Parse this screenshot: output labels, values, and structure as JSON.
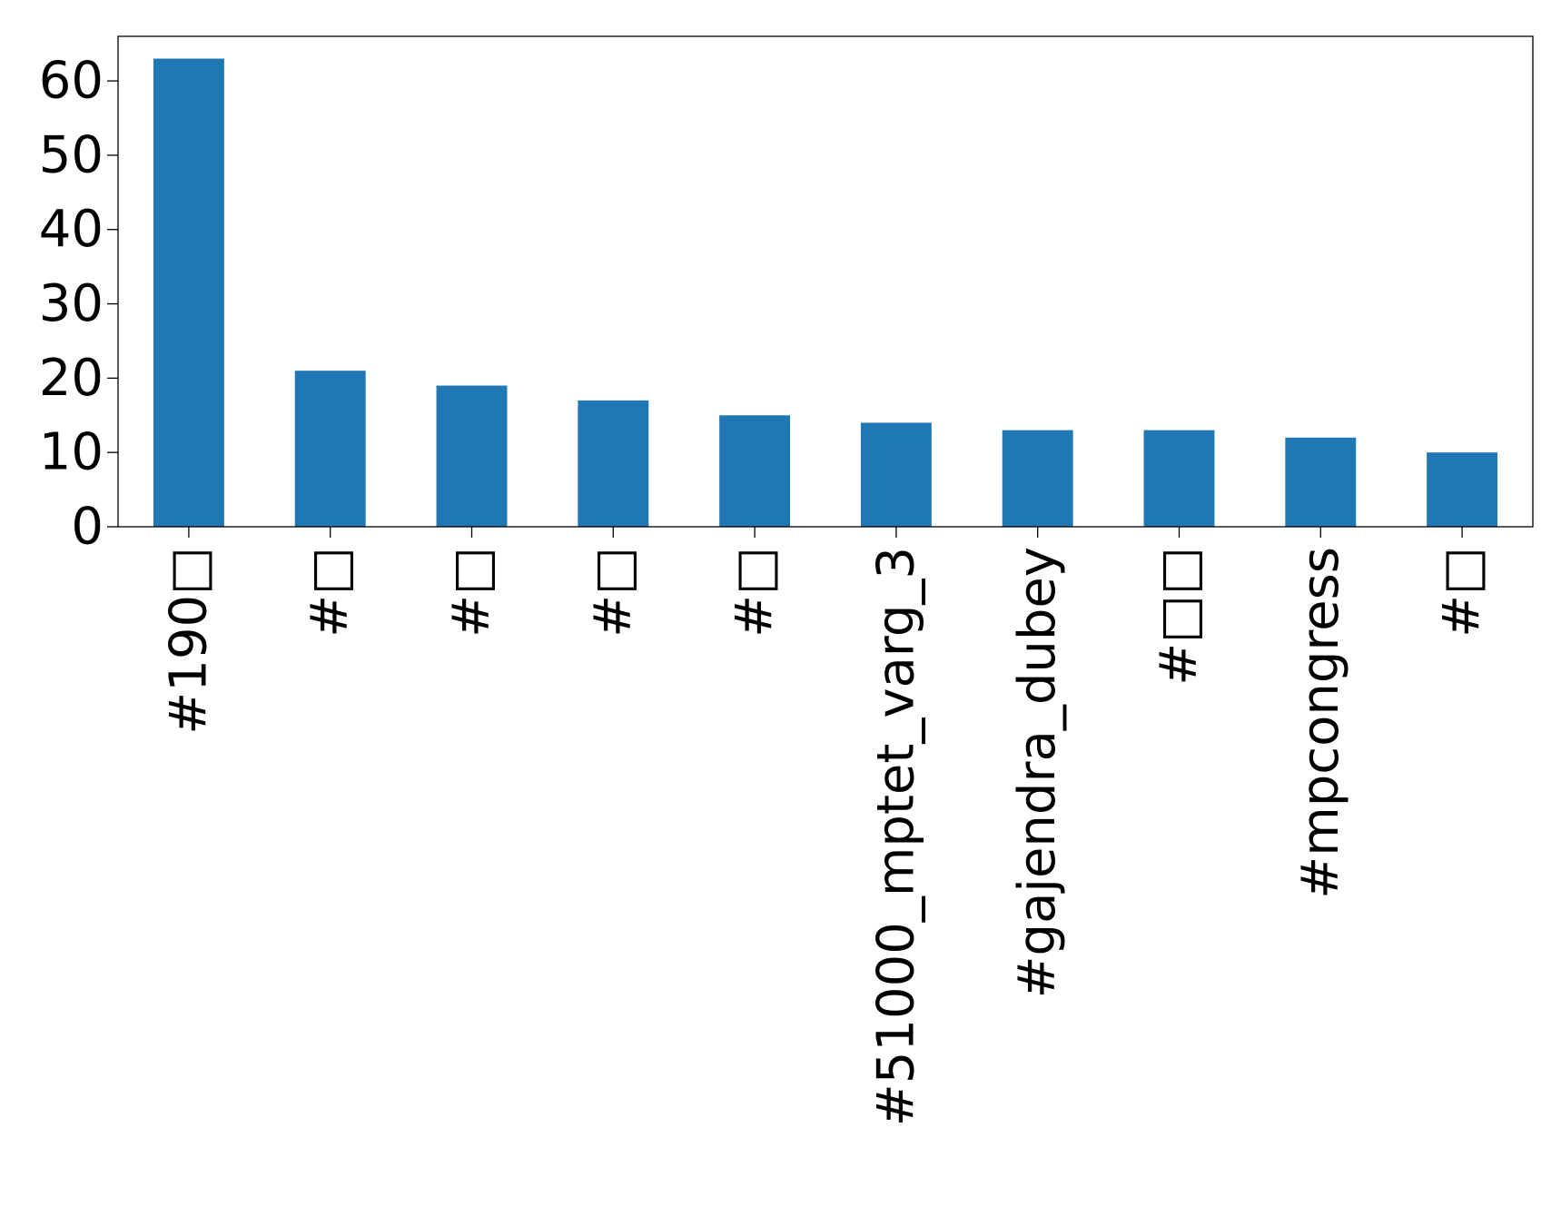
{
  "chart_data": {
    "type": "bar",
    "title": "",
    "xlabel": "",
    "ylabel": "",
    "categories": [
      "#190□",
      "#□",
      "#□",
      "#□",
      "#□",
      "#51000_mptet_varg_3",
      "#gajendra_dubey",
      "#□□",
      "#mpcongress",
      "#□"
    ],
    "values": [
      63,
      21,
      19,
      17,
      15,
      14,
      13,
      13,
      12,
      10
    ],
    "ylim": [
      0,
      66
    ],
    "yticks": [
      0,
      10,
      20,
      30,
      40,
      50,
      60
    ],
    "grid": false,
    "legend": "none",
    "colors": {
      "bar": "#1f77b4",
      "axis": "#000000",
      "background": "#ffffff"
    }
  }
}
